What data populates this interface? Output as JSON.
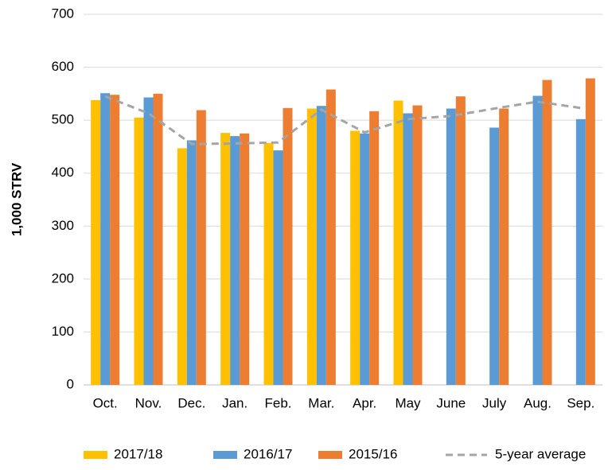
{
  "chart_data": {
    "type": "bar",
    "y_label": "1,000 STRV",
    "categories": [
      "Oct.",
      "Nov.",
      "Dec.",
      "Jan.",
      "Feb.",
      "Mar.",
      "Apr.",
      "May",
      "June",
      "July",
      "Aug.",
      "Sep."
    ],
    "series": [
      {
        "name": "2017/18",
        "color": "#ffc000",
        "type": "bar",
        "values": [
          538,
          505,
          447,
          476,
          457,
          522,
          480,
          537,
          null,
          null,
          null,
          null
        ]
      },
      {
        "name": "2016/17",
        "color": "#5b9bd5",
        "type": "bar",
        "values": [
          551,
          543,
          462,
          470,
          443,
          527,
          475,
          513,
          522,
          486,
          546,
          502
        ]
      },
      {
        "name": "2015/16",
        "color": "#ed7d31",
        "type": "bar",
        "values": [
          548,
          550,
          519,
          475,
          523,
          558,
          517,
          528,
          545,
          522,
          576,
          579
        ]
      },
      {
        "name": "5-year average",
        "color": "#a5a5a5",
        "type": "line",
        "values": [
          545,
          513,
          455,
          456,
          458,
          520,
          477,
          502,
          508,
          522,
          535,
          523
        ]
      }
    ],
    "ylim": [
      0,
      700
    ],
    "yticks": [
      0,
      100,
      200,
      300,
      400,
      500,
      600,
      700
    ],
    "grid": true,
    "legend": "bottom"
  }
}
